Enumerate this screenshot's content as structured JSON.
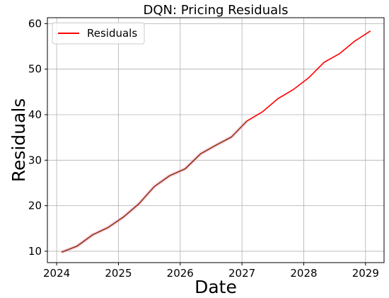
{
  "chart_data": {
    "type": "line",
    "title": "DQN: Pricing Residuals",
    "xlabel": "Date",
    "ylabel": "Residuals",
    "xlim": [
      2023.85,
      2029.3
    ],
    "ylim": [
      7.5,
      61.3
    ],
    "grid": true,
    "legend_position": "top-left",
    "x_ticks": [
      2024,
      2025,
      2026,
      2027,
      2028,
      2029
    ],
    "x_tick_labels": [
      "2024",
      "2025",
      "2026",
      "2027",
      "2028",
      "2029"
    ],
    "y_ticks": [
      10,
      20,
      30,
      40,
      50,
      60
    ],
    "y_tick_labels": [
      "10",
      "20",
      "30",
      "40",
      "50",
      "60"
    ],
    "series": [
      {
        "name": "Residuals",
        "color": "#ff0000",
        "x": [
          2024.08,
          2024.33,
          2024.58,
          2024.83,
          2025.08,
          2025.33,
          2025.58,
          2025.83,
          2026.08,
          2026.33,
          2026.58,
          2026.83,
          2027.08,
          2027.33,
          2027.58,
          2027.83,
          2028.08,
          2028.33,
          2028.58,
          2028.83,
          2029.08
        ],
        "y": [
          9.8,
          11.1,
          13.6,
          15.2,
          17.5,
          20.4,
          24.2,
          26.6,
          28.1,
          31.4,
          33.3,
          35.1,
          38.6,
          40.6,
          43.5,
          45.5,
          48.1,
          51.5,
          53.4,
          56.2,
          58.4
        ]
      }
    ],
    "highlight_color": "#f4a6e0",
    "overlay_color": "#8b4513"
  }
}
